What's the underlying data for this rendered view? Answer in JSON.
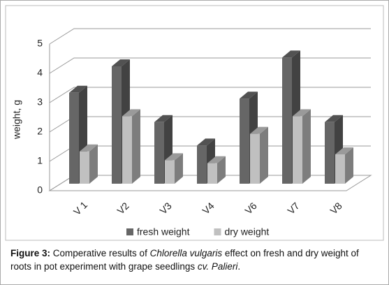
{
  "chart_data": {
    "type": "bar3d",
    "y_label": "weight, g",
    "categories": [
      "V 1",
      "V2",
      "V3",
      "V4",
      "V6",
      "V7",
      "V8"
    ],
    "series": [
      {
        "name": "fresh weight",
        "color": "#666666",
        "values": [
          3.1,
          4.0,
          2.1,
          1.3,
          2.9,
          4.3,
          2.1
        ]
      },
      {
        "name": "dry weight",
        "color": "#c0c0c0",
        "values": [
          1.1,
          2.3,
          0.8,
          0.7,
          1.7,
          2.3,
          1.0
        ]
      }
    ],
    "ylim": [
      0,
      5
    ],
    "yticks": [
      0,
      1,
      2,
      3,
      4,
      5
    ],
    "grid": true,
    "legend": "bottom"
  },
  "caption": [
    "Figure 3:",
    " Comperative results of ",
    "Chlorella vulgaris",
    " effect on fresh and dry weight of roots in pot experiment with grape seedlings ",
    "cv. Palieri",
    "."
  ]
}
